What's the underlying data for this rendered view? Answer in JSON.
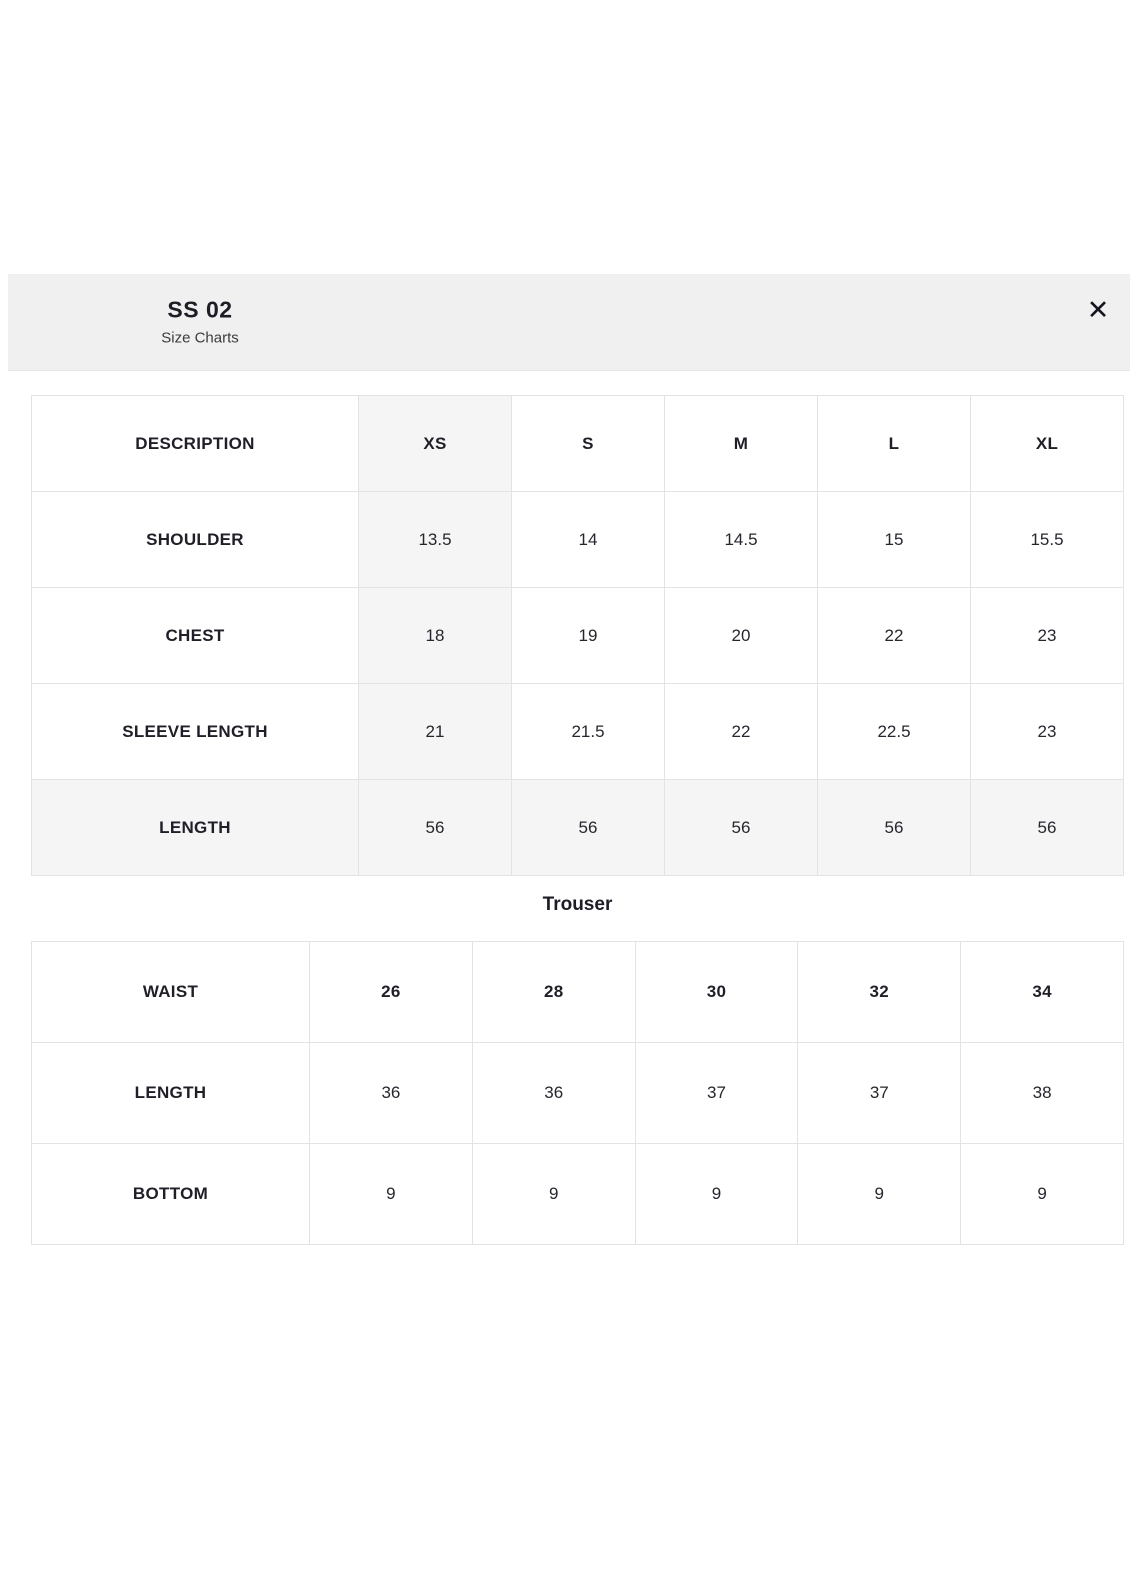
{
  "modal": {
    "title": "SS 02",
    "subtitle": "Size Charts",
    "close_icon": "✕"
  },
  "colors": {
    "header_band_bg": "#f0f0f0",
    "highlight_bg": "#f5f5f5",
    "table_border": "#e3e3e3",
    "text": "#212126",
    "page_bg": "#ffffff"
  },
  "shirt_table": {
    "header": [
      "DESCRIPTION",
      "XS",
      "S",
      "M",
      "L",
      "XL"
    ],
    "highlighted_column": "XS",
    "highlighted_row": "LENGTH",
    "rows": [
      {
        "label": "SHOULDER",
        "values": [
          "13.5",
          "14",
          "14.5",
          "15",
          "15.5"
        ]
      },
      {
        "label": "CHEST",
        "values": [
          "18",
          "19",
          "20",
          "22",
          "23"
        ]
      },
      {
        "label": "SLEEVE LENGTH",
        "values": [
          "21",
          "21.5",
          "22",
          "22.5",
          "23"
        ]
      },
      {
        "label": "LENGTH",
        "values": [
          "56",
          "56",
          "56",
          "56",
          "56"
        ]
      }
    ]
  },
  "trouser_table": {
    "section_title": "Trouser",
    "header": [
      "WAIST",
      "26",
      "28",
      "30",
      "32",
      "34"
    ],
    "rows": [
      {
        "label": "LENGTH",
        "values": [
          "36",
          "36",
          "37",
          "37",
          "38"
        ]
      },
      {
        "label": "BOTTOM",
        "values": [
          "9",
          "9",
          "9",
          "9",
          "9"
        ]
      }
    ]
  }
}
